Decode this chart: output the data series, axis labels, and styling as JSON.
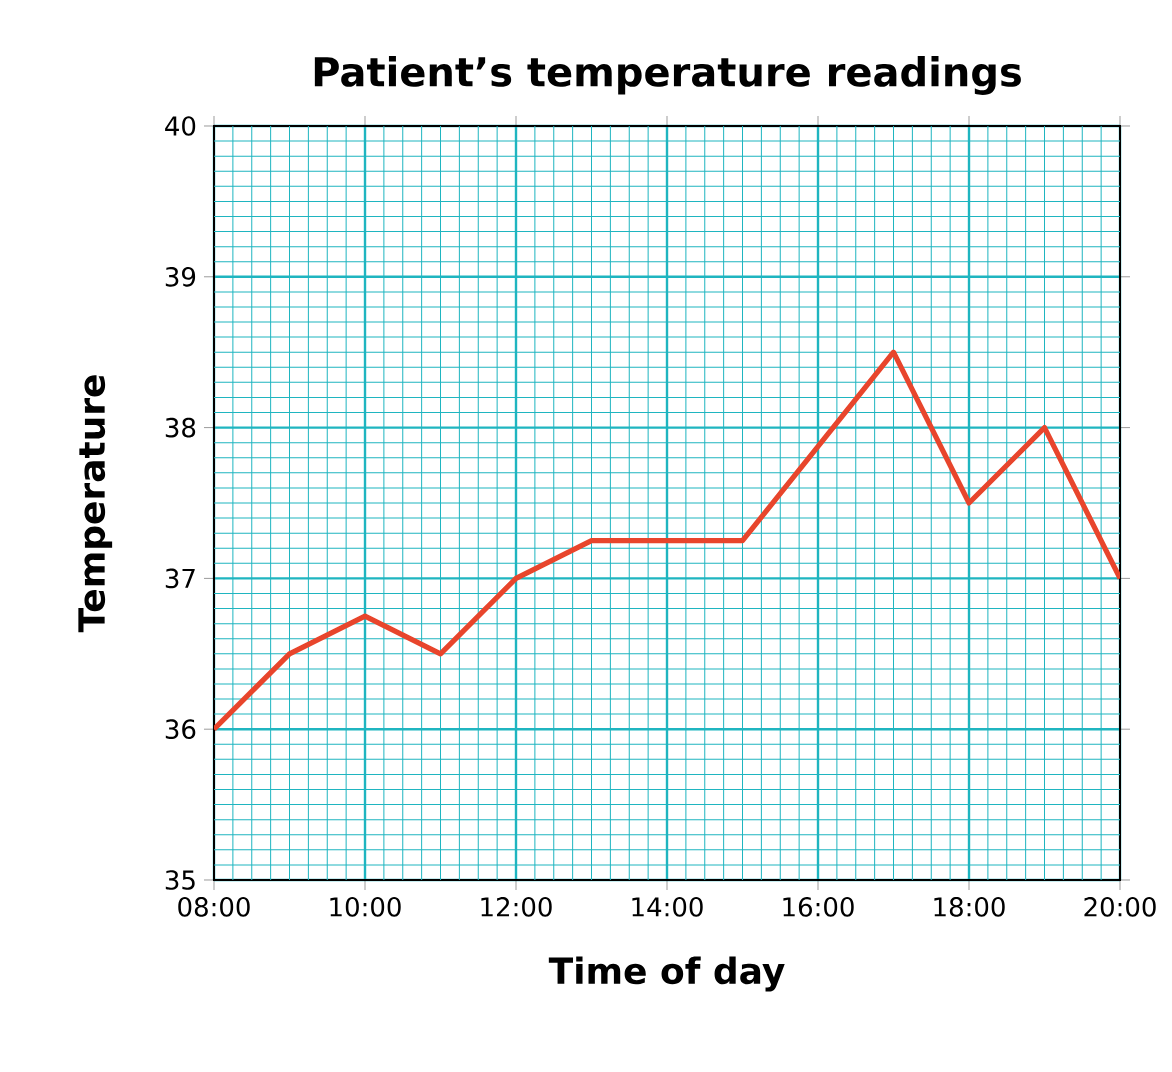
{
  "chart_data": {
    "type": "line",
    "title": "Patient’s temperature readings",
    "xlabel": "Time of day",
    "ylabel": "Temperature",
    "series": [
      {
        "color": "#e8452c",
        "x": [
          8,
          9,
          10,
          11,
          12,
          13,
          15,
          17,
          18,
          19,
          20
        ],
        "values": [
          36.0,
          36.5,
          36.75,
          36.5,
          37.0,
          37.25,
          37.25,
          38.5,
          37.5,
          38.0,
          37.0
        ]
      }
    ],
    "xlim": [
      8,
      20
    ],
    "xticks": [
      {
        "value": 8,
        "label": "08:00"
      },
      {
        "value": 8.25,
        "label": null
      },
      {
        "value": 8.5,
        "label": null
      },
      {
        "value": 8.75,
        "label": null
      },
      {
        "value": 9,
        "label": null
      },
      {
        "value": 9.25,
        "label": null
      },
      {
        "value": 9.5,
        "label": null
      },
      {
        "value": 9.75,
        "label": null
      },
      {
        "value": 10,
        "label": "10:00"
      },
      {
        "value": 10.25,
        "label": null
      },
      {
        "value": 10.5,
        "label": null
      },
      {
        "value": 10.75,
        "label": null
      },
      {
        "value": 11,
        "label": null
      },
      {
        "value": 11.25,
        "label": null
      },
      {
        "value": 11.5,
        "label": null
      },
      {
        "value": 11.75,
        "label": null
      },
      {
        "value": 12,
        "label": "12:00"
      },
      {
        "value": 12.25,
        "label": null
      },
      {
        "value": 12.5,
        "label": null
      },
      {
        "value": 12.75,
        "label": null
      },
      {
        "value": 13,
        "label": null
      },
      {
        "value": 13.25,
        "label": null
      },
      {
        "value": 13.5,
        "label": null
      },
      {
        "value": 13.75,
        "label": null
      },
      {
        "value": 14,
        "label": "14:00"
      },
      {
        "value": 14.25,
        "label": null
      },
      {
        "value": 14.5,
        "label": null
      },
      {
        "value": 14.75,
        "label": null
      },
      {
        "value": 15,
        "label": null
      },
      {
        "value": 15.25,
        "label": null
      },
      {
        "value": 15.5,
        "label": null
      },
      {
        "value": 15.75,
        "label": null
      },
      {
        "value": 16,
        "label": "16:00"
      },
      {
        "value": 16.25,
        "label": null
      },
      {
        "value": 16.5,
        "label": null
      },
      {
        "value": 16.75,
        "label": null
      },
      {
        "value": 17,
        "label": null
      },
      {
        "value": 17.25,
        "label": null
      },
      {
        "value": 17.5,
        "label": null
      },
      {
        "value": 17.75,
        "label": null
      },
      {
        "value": 18,
        "label": "18:00"
      },
      {
        "value": 18.25,
        "label": null
      },
      {
        "value": 18.5,
        "label": null
      },
      {
        "value": 18.75,
        "label": null
      },
      {
        "value": 19,
        "label": null
      },
      {
        "value": 19.25,
        "label": null
      },
      {
        "value": 19.5,
        "label": null
      },
      {
        "value": 19.75,
        "label": null
      },
      {
        "value": 20,
        "label": "20:00"
      }
    ],
    "ylim": [
      35,
      40
    ],
    "yticks": [
      35,
      {
        "value": 35.1,
        "label": null
      },
      {
        "value": 35.2,
        "label": null
      },
      {
        "value": 35.3,
        "label": null
      },
      {
        "value": 35.4,
        "label": null
      },
      {
        "value": 35.5,
        "label": null
      },
      {
        "value": 35.6,
        "label": null
      },
      {
        "value": 35.7,
        "label": null
      },
      {
        "value": 35.8,
        "label": null
      },
      {
        "value": 35.9,
        "label": null
      },
      36,
      {
        "value": 36.1,
        "label": null
      },
      {
        "value": 36.2,
        "label": null
      },
      {
        "value": 36.3,
        "label": null
      },
      {
        "value": 36.4,
        "label": null
      },
      {
        "value": 36.5,
        "label": null
      },
      {
        "value": 36.6,
        "label": null
      },
      {
        "value": 36.7,
        "label": null
      },
      {
        "value": 36.8,
        "label": null
      },
      {
        "value": 36.9,
        "label": null
      },
      37,
      {
        "value": 37.1,
        "label": null
      },
      {
        "value": 37.2,
        "label": null
      },
      {
        "value": 37.3,
        "label": null
      },
      {
        "value": 37.4,
        "label": null
      },
      {
        "value": 37.5,
        "label": null
      },
      {
        "value": 37.6,
        "label": null
      },
      {
        "value": 37.7,
        "label": null
      },
      {
        "value": 37.8,
        "label": null
      },
      {
        "value": 37.9,
        "label": null
      },
      38,
      {
        "value": 38.1,
        "label": null
      },
      {
        "value": 38.2,
        "label": null
      },
      {
        "value": 38.3,
        "label": null
      },
      {
        "value": 38.4,
        "label": null
      },
      {
        "value": 38.5,
        "label": null
      },
      {
        "value": 38.6,
        "label": null
      },
      {
        "value": 38.7,
        "label": null
      },
      {
        "value": 38.8,
        "label": null
      },
      {
        "value": 38.9,
        "label": null
      },
      39,
      {
        "value": 39.1,
        "label": null
      },
      {
        "value": 39.2,
        "label": null
      },
      {
        "value": 39.3,
        "label": null
      },
      {
        "value": 39.4,
        "label": null
      },
      {
        "value": 39.5,
        "label": null
      },
      {
        "value": 39.6,
        "label": null
      },
      {
        "value": 39.7,
        "label": null
      },
      {
        "value": 39.8,
        "label": null
      },
      {
        "value": 39.9,
        "label": null
      },
      40
    ],
    "grid": true,
    "marker": "none",
    "line_style": "solid"
  }
}
